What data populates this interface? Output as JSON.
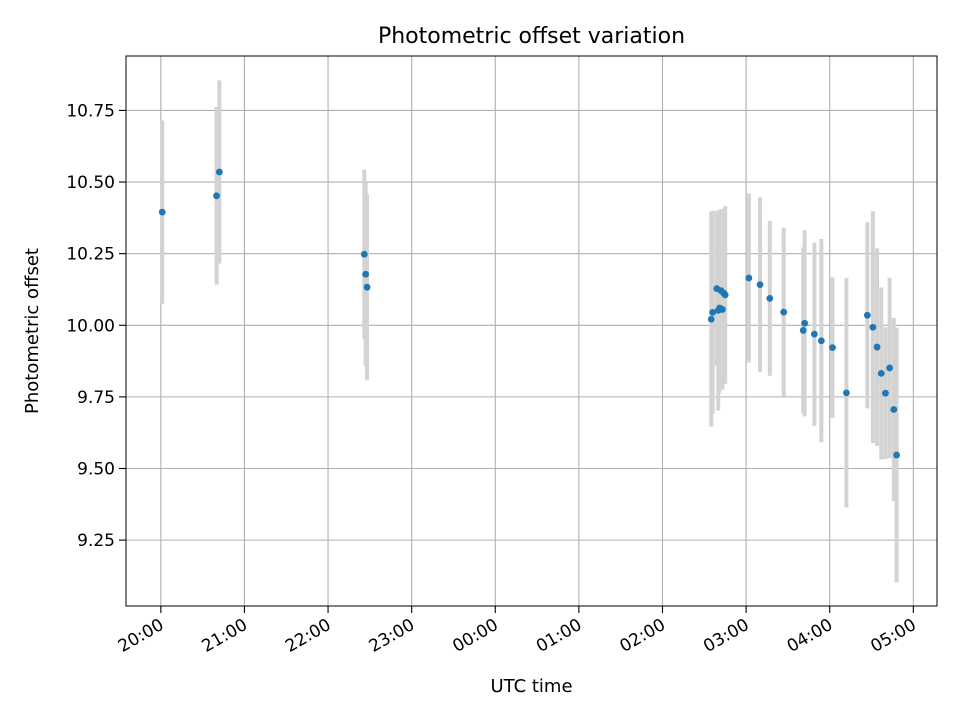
{
  "chart_data": {
    "type": "scatter",
    "title": "Photometric offset variation",
    "xlabel": "UTC time",
    "ylabel": "Photometric offset",
    "x_unit": "UTC time (HH:MM), evening then morning of next day",
    "xlim": [
      "19:35",
      "05:17"
    ],
    "ylim": [
      9.02,
      10.94
    ],
    "x_ticks": [
      "20:00",
      "21:00",
      "22:00",
      "23:00",
      "00:00",
      "01:00",
      "02:00",
      "03:00",
      "04:00",
      "05:00"
    ],
    "y_ticks": [
      9.25,
      9.5,
      9.75,
      10.0,
      10.25,
      10.5,
      10.75
    ],
    "y_tick_labels": [
      "9.25",
      "9.50",
      "9.75",
      "10.00",
      "10.25",
      "10.50",
      "10.75"
    ],
    "grid": true,
    "legend": "none",
    "marker_color": "#1f77b4",
    "errorbar_color": "#d3d3d3",
    "points": [
      {
        "x": "20:01",
        "y": 10.395,
        "yerr": 0.32
      },
      {
        "x": "20:40",
        "y": 10.452,
        "yerr": 0.31
      },
      {
        "x": "20:42",
        "y": 10.535,
        "yerr": 0.32
      },
      {
        "x": "22:26",
        "y": 10.248,
        "yerr": 0.295
      },
      {
        "x": "22:27",
        "y": 10.178,
        "yerr": 0.32
      },
      {
        "x": "22:28",
        "y": 10.133,
        "yerr": 0.325
      },
      {
        "x": "02:35",
        "y": 10.021,
        "yerr": 0.375
      },
      {
        "x": "02:36",
        "y": 10.045,
        "yerr": 0.355
      },
      {
        "x": "02:39",
        "y": 10.128,
        "yerr": 0.27
      },
      {
        "x": "02:40",
        "y": 10.052,
        "yerr": 0.35
      },
      {
        "x": "02:41",
        "y": 10.06,
        "yerr": 0.295
      },
      {
        "x": "02:42",
        "y": 10.121,
        "yerr": 0.285
      },
      {
        "x": "02:43",
        "y": 10.055,
        "yerr": 0.28
      },
      {
        "x": "02:44",
        "y": 10.112,
        "yerr": 0.295
      },
      {
        "x": "02:45",
        "y": 10.106,
        "yerr": 0.31
      },
      {
        "x": "03:02",
        "y": 10.165,
        "yerr": 0.295
      },
      {
        "x": "03:10",
        "y": 10.142,
        "yerr": 0.305
      },
      {
        "x": "03:17",
        "y": 10.094,
        "yerr": 0.27
      },
      {
        "x": "03:27",
        "y": 10.046,
        "yerr": 0.295
      },
      {
        "x": "03:41",
        "y": 9.982,
        "yerr": 0.29
      },
      {
        "x": "03:42",
        "y": 10.007,
        "yerr": 0.325
      },
      {
        "x": "03:49",
        "y": 9.969,
        "yerr": 0.32
      },
      {
        "x": "03:54",
        "y": 9.946,
        "yerr": 0.355
      },
      {
        "x": "04:02",
        "y": 9.922,
        "yerr": 0.245
      },
      {
        "x": "04:12",
        "y": 9.764,
        "yerr": 0.4
      },
      {
        "x": "04:27",
        "y": 10.035,
        "yerr": 0.325
      },
      {
        "x": "04:31",
        "y": 9.993,
        "yerr": 0.405
      },
      {
        "x": "04:34",
        "y": 9.924,
        "yerr": 0.345
      },
      {
        "x": "04:37",
        "y": 9.832,
        "yerr": 0.3
      },
      {
        "x": "04:40",
        "y": 9.763,
        "yerr": 0.23
      },
      {
        "x": "04:43",
        "y": 9.851,
        "yerr": 0.315
      },
      {
        "x": "04:46",
        "y": 9.706,
        "yerr": 0.32
      },
      {
        "x": "04:48",
        "y": 9.547,
        "yerr": 0.445
      }
    ]
  }
}
